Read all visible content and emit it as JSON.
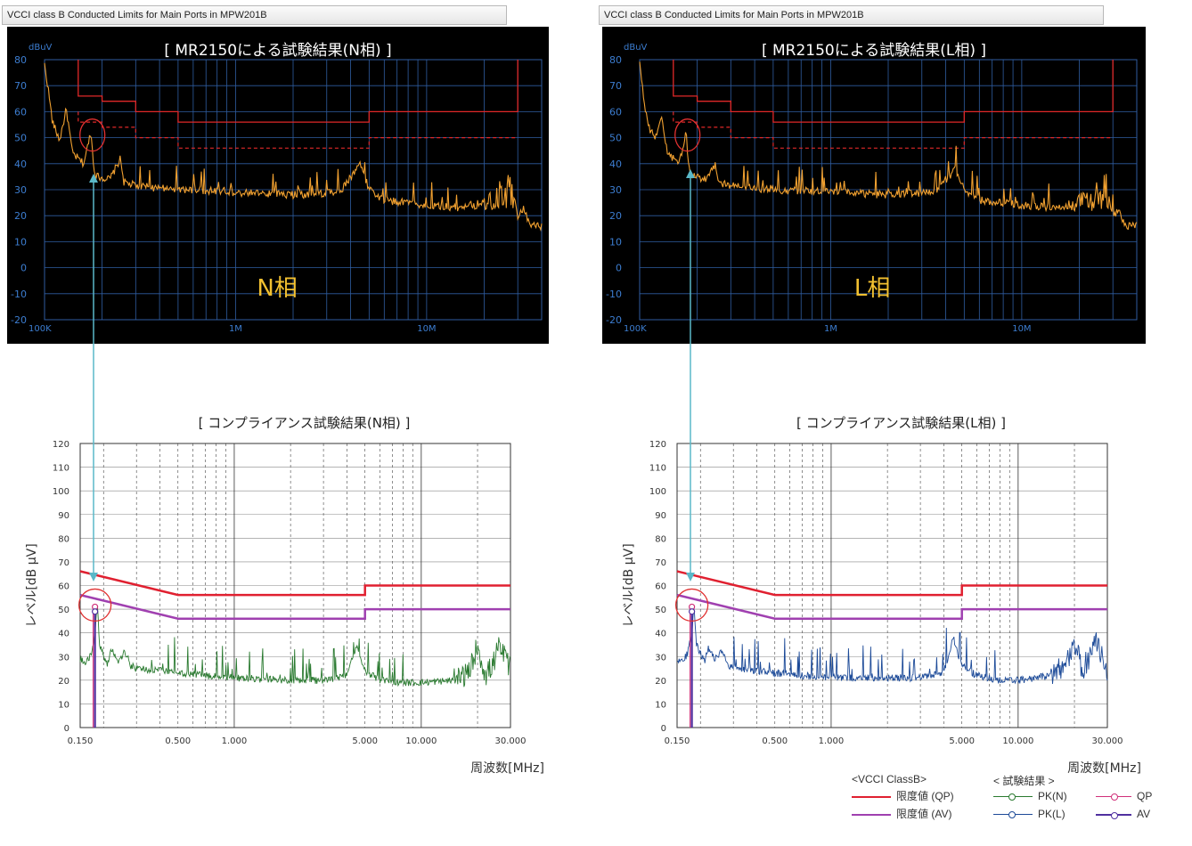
{
  "window_titles": {
    "n": "VCCI class B Conducted Limits for Main Ports in MPW201B",
    "l": "VCCI class B Conducted Limits for Main Ports in MPW201B"
  },
  "colors": {
    "scope_bg": "#000000",
    "scope_grid": "#2f5da0",
    "scope_axis_text": "#3c7dd0",
    "scope_trace": "#f0a030",
    "limit_line": "#e02828",
    "scope_title": "#ffffff",
    "phase_label": "#f2c030",
    "qp_limit": "#e02030",
    "av_limit": "#a040b0",
    "pk_n": "#2a7a30",
    "pk_l": "#1c4a98",
    "qp_marker": "#d0307a",
    "av_marker": "#5030a0",
    "arrow": "#5ab8c8",
    "circle": "#e03030"
  },
  "legend": {
    "vcci_title": "<VCCI ClassB>",
    "result_title": "< 試験結果 >",
    "qp_limit": "限度値 (QP)",
    "av_limit": "限度値 (AV)",
    "pk_n": "PK(N)",
    "pk_l": "PK(L)",
    "qp": "QP",
    "av": "AV"
  },
  "chart_data": [
    {
      "type": "line",
      "id": "scope-n",
      "title": "[ MR2150による試験結果(N相) ]",
      "phase_label": "N相",
      "ylabel": "dBuV",
      "xscale": "log",
      "xlim_mhz": [
        0.1,
        40
      ],
      "ylim": [
        -20,
        80
      ],
      "yticks": [
        "80",
        "70",
        "60",
        "50",
        "40",
        "30",
        "20",
        "10",
        "0",
        "-10",
        "-20"
      ],
      "xticks": [
        {
          "label": "100K",
          "mhz": 0.1
        },
        {
          "label": "1M",
          "mhz": 1
        },
        {
          "label": "10M",
          "mhz": 10
        }
      ],
      "grid": true,
      "series": [
        {
          "role": "qp-limit",
          "x": [
            0.15,
            0.15,
            0.2,
            0.2,
            0.3,
            0.3,
            0.5,
            0.5,
            5,
            5,
            30,
            30
          ],
          "y": [
            80,
            66,
            66,
            64,
            64,
            60,
            60,
            56,
            56,
            60,
            60,
            80
          ]
        },
        {
          "role": "av-limit",
          "x": [
            0.15,
            0.15,
            0.2,
            0.2,
            0.3,
            0.3,
            0.5,
            0.5,
            5,
            5,
            30
          ],
          "y": [
            60,
            56,
            56,
            54,
            54,
            50,
            50,
            46,
            46,
            50,
            50
          ]
        },
        {
          "role": "trace",
          "x": [
            0.1,
            0.104,
            0.11,
            0.12,
            0.13,
            0.14,
            0.16,
            0.17,
            0.175,
            0.18,
            0.185,
            0.19,
            0.22,
            0.25,
            0.26,
            0.28,
            0.35,
            0.5,
            1,
            2,
            3.5,
            4.5,
            5,
            6,
            10,
            15,
            20,
            28,
            30,
            32,
            35,
            40
          ],
          "y": [
            78,
            70,
            56,
            49,
            61,
            44,
            40,
            48,
            53,
            40,
            36,
            35,
            34,
            42,
            33,
            32,
            31,
            30,
            29,
            28,
            29,
            40,
            30,
            26,
            24,
            23,
            25,
            30,
            20,
            23,
            16,
            16
          ]
        }
      ]
    },
    {
      "type": "line",
      "id": "scope-l",
      "title": "[ MR2150による試験結果(L相) ]",
      "phase_label": "L相",
      "ylabel": "dBuV",
      "xscale": "log",
      "xlim_mhz": [
        0.1,
        40
      ],
      "ylim": [
        -20,
        80
      ],
      "yticks": [
        "80",
        "70",
        "60",
        "50",
        "40",
        "30",
        "20",
        "10",
        "0",
        "-10",
        "-20"
      ],
      "xticks": [
        {
          "label": "100K",
          "mhz": 0.1
        },
        {
          "label": "1M",
          "mhz": 1
        },
        {
          "label": "10M",
          "mhz": 10
        }
      ],
      "grid": true,
      "series": [
        {
          "role": "qp-limit",
          "x": [
            0.15,
            0.15,
            0.2,
            0.2,
            0.3,
            0.3,
            0.5,
            0.5,
            5,
            5,
            30,
            30
          ],
          "y": [
            80,
            66,
            66,
            64,
            64,
            60,
            60,
            56,
            56,
            60,
            60,
            80
          ]
        },
        {
          "role": "av-limit",
          "x": [
            0.15,
            0.15,
            0.2,
            0.2,
            0.3,
            0.3,
            0.5,
            0.5,
            5,
            5,
            30
          ],
          "y": [
            60,
            56,
            56,
            54,
            54,
            50,
            50,
            46,
            46,
            50,
            50
          ]
        },
        {
          "role": "trace",
          "x": [
            0.1,
            0.104,
            0.11,
            0.12,
            0.13,
            0.14,
            0.16,
            0.17,
            0.175,
            0.18,
            0.185,
            0.19,
            0.22,
            0.25,
            0.26,
            0.28,
            0.35,
            0.5,
            1,
            2,
            3.5,
            4.5,
            5,
            6,
            10,
            15,
            20,
            28,
            30,
            32,
            35,
            40
          ],
          "y": [
            78,
            68,
            55,
            50,
            58,
            44,
            40,
            47,
            52,
            40,
            36,
            35,
            34,
            40,
            33,
            32,
            31,
            30,
            29,
            28,
            29,
            38,
            30,
            26,
            24,
            23,
            25,
            29,
            20,
            22,
            16,
            16
          ]
        }
      ]
    },
    {
      "type": "line",
      "id": "compliance-n",
      "title": "[ コンプライアンス試験結果(N相) ]",
      "ylabel": "レベル[dB μV]",
      "xlabel": "周波数[MHz]",
      "xscale": "log",
      "xlim_mhz": [
        0.15,
        30
      ],
      "ylim": [
        0,
        120
      ],
      "yticks": [
        "0",
        "10",
        "20",
        "30",
        "40",
        "50",
        "60",
        "70",
        "80",
        "90",
        "100",
        "110",
        "120"
      ],
      "xticks": [
        {
          "label": "0.150",
          "mhz": 0.15
        },
        {
          "label": "0.500",
          "mhz": 0.5
        },
        {
          "label": "1.000",
          "mhz": 1
        },
        {
          "label": "5.000",
          "mhz": 5
        },
        {
          "label": "10.000",
          "mhz": 10
        },
        {
          "label": "30.000",
          "mhz": 30
        }
      ],
      "grid": true,
      "series": [
        {
          "role": "qp-limit",
          "x": [
            0.15,
            0.5,
            5,
            5,
            30
          ],
          "y": [
            66,
            56,
            56,
            60,
            60
          ]
        },
        {
          "role": "av-limit",
          "x": [
            0.15,
            0.5,
            5,
            5,
            30
          ],
          "y": [
            56,
            46,
            46,
            50,
            50
          ]
        },
        {
          "role": "pk",
          "x": [
            0.15,
            0.16,
            0.17,
            0.18,
            0.185,
            0.19,
            0.2,
            0.21,
            0.22,
            0.24,
            0.26,
            0.28,
            0.3,
            0.4,
            0.5,
            0.7,
            1,
            2,
            3,
            4,
            4.5,
            5,
            6,
            8,
            10,
            15,
            18,
            20,
            22,
            24,
            26,
            28,
            30
          ],
          "y": [
            29,
            27,
            30,
            40,
            52,
            36,
            30,
            27,
            33,
            28,
            32,
            26,
            25,
            24,
            23,
            22,
            21,
            20,
            20,
            22,
            34,
            24,
            20,
            19,
            19,
            20,
            23,
            35,
            22,
            26,
            34,
            30,
            25
          ]
        }
      ],
      "markers": {
        "qp": {
          "x": 0.18,
          "y": 51
        },
        "av": {
          "x": 0.18,
          "y": 49
        }
      }
    },
    {
      "type": "line",
      "id": "compliance-l",
      "title": "[ コンプライアンス試験結果(L相) ]",
      "ylabel": "レベル[dB μV]",
      "xlabel": "周波数[MHz]",
      "xscale": "log",
      "xlim_mhz": [
        0.15,
        30
      ],
      "ylim": [
        0,
        120
      ],
      "yticks": [
        "0",
        "10",
        "20",
        "30",
        "40",
        "50",
        "60",
        "70",
        "80",
        "90",
        "100",
        "110",
        "120"
      ],
      "xticks": [
        {
          "label": "0.150",
          "mhz": 0.15
        },
        {
          "label": "0.500",
          "mhz": 0.5
        },
        {
          "label": "1.000",
          "mhz": 1
        },
        {
          "label": "5.000",
          "mhz": 5
        },
        {
          "label": "10.000",
          "mhz": 10
        },
        {
          "label": "30.000",
          "mhz": 30
        }
      ],
      "grid": true,
      "series": [
        {
          "role": "qp-limit",
          "x": [
            0.15,
            0.5,
            5,
            5,
            30
          ],
          "y": [
            66,
            56,
            56,
            60,
            60
          ]
        },
        {
          "role": "av-limit",
          "x": [
            0.15,
            0.5,
            5,
            5,
            30
          ],
          "y": [
            56,
            46,
            46,
            50,
            50
          ]
        },
        {
          "role": "pk",
          "x": [
            0.15,
            0.16,
            0.17,
            0.18,
            0.185,
            0.19,
            0.2,
            0.21,
            0.22,
            0.24,
            0.26,
            0.28,
            0.3,
            0.4,
            0.5,
            0.7,
            1,
            2,
            3,
            4,
            4.5,
            5,
            6,
            8,
            10,
            15,
            18,
            20,
            22,
            24,
            26,
            28,
            30
          ],
          "y": [
            29,
            28,
            31,
            41,
            51,
            36,
            31,
            28,
            34,
            29,
            32,
            26,
            25,
            24,
            23,
            22,
            21,
            21,
            21,
            23,
            38,
            26,
            22,
            20,
            20,
            22,
            27,
            37,
            24,
            30,
            37,
            30,
            24
          ]
        }
      ],
      "markers": {
        "qp": {
          "x": 0.18,
          "y": 51
        },
        "av": {
          "x": 0.18,
          "y": 49
        }
      }
    }
  ]
}
